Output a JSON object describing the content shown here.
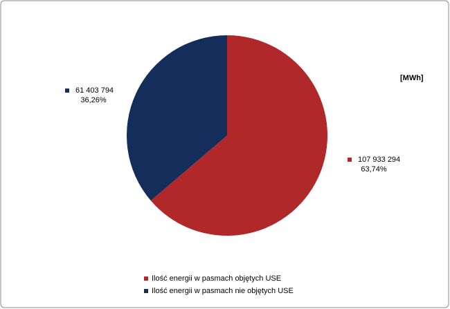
{
  "chart_data": {
    "type": "pie",
    "unit": "[MWh]",
    "categories": [
      "Ilość energii w pasmach objętych USE",
      "Ilość energii w pasmach nie objętych USE"
    ],
    "values": [
      107933294,
      61403794
    ],
    "value_labels": [
      "107 933 294",
      "61 403 794"
    ],
    "percent_labels": [
      "63,74%",
      "36,26%"
    ],
    "colors": [
      "#b0282a",
      "#142d5a"
    ]
  }
}
